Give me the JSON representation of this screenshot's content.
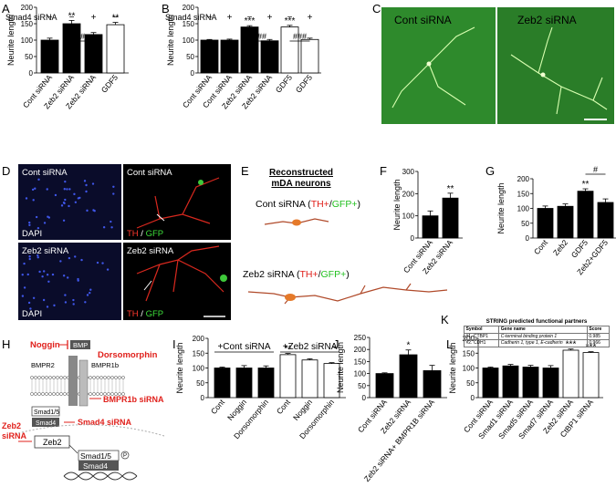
{
  "panel_letters": [
    "A",
    "B",
    "C",
    "D",
    "E",
    "F",
    "G",
    "H",
    "I",
    "J",
    "K",
    "L"
  ],
  "colors": {
    "black_bar": "#000000",
    "white_bar": "#ffffff",
    "red_text": "#e0201b",
    "green_text": "#22c020",
    "dapi_bg": "#0a0c2a",
    "fluo_bg": "#2a7a2a"
  },
  "panel_C": {
    "left_label": "Cont siRNA",
    "right_label": "Zeb2 siRNA"
  },
  "panel_D": {
    "top_left": "Cont siRNA",
    "top_right": "Cont siRNA",
    "bottom_left": "Zeb2 siRNA",
    "bottom_right": "Zeb2 siRNA",
    "dapi": "DAPI",
    "th": "TH",
    "slash": " / ",
    "gfp": "GFP"
  },
  "panel_E": {
    "title_line1": "Reconstructed",
    "title_line2": "mDA neurons",
    "cont_prefix": "Cont siRNA (",
    "zeb2_prefix": "Zeb2 siRNA (",
    "th": "TH+",
    "slash": "/",
    "gfp": "GFP+",
    "close": ")"
  },
  "panel_H": {
    "noggin": "Noggin",
    "bmp": "BMP",
    "dorsomorphin": "Dorsomorphin",
    "bmpr2": "BMPR2",
    "bmpr1b": "BMPR1b",
    "bmpr1b_sirna": "BMPR1b siRNA",
    "smad15": "Smad1/5",
    "smad4": "Smad4",
    "smad4_sirna": "Smad4 siRNA",
    "zeb2_sirna_line1": "Zeb2",
    "zeb2_sirna_line2": "siRNA",
    "zeb2": "Zeb2",
    "nuc_smad15": "Smad1/5",
    "nuc_smad4": "Smad4",
    "p": "P"
  },
  "panel_K": {
    "title": "STRING predicted functional partners",
    "headers": [
      "Symbol",
      "Gene name",
      "Score"
    ],
    "rows": [
      [
        "#1. CTBP1",
        "C-terminal binding protein 1",
        "0.985"
      ],
      [
        "#2. CDH1",
        "Cadherin 1, type 1, E-cadherin",
        "0.966"
      ]
    ]
  },
  "chart_data": [
    {
      "panel": "A",
      "type": "bar",
      "ylabel": "Neurite length",
      "ylim": [
        0,
        200
      ],
      "yticks": [
        "0",
        "50",
        "100",
        "150",
        "200"
      ],
      "categories": [
        "Cont siRNA",
        "Zeb2 siRNA",
        "Zeb2 siRNA",
        "GDF5"
      ],
      "values": [
        100,
        150,
        117,
        147
      ],
      "errors": [
        6,
        10,
        6,
        7
      ],
      "fills": [
        "black",
        "black",
        "black",
        "white"
      ],
      "smad4_label": "Smad4 siRNA",
      "smad4_row": [
        "−",
        "−",
        "+",
        "−"
      ],
      "stars": [
        "",
        "**",
        "",
        "**"
      ],
      "brackets": [
        {
          "from": 1,
          "to": 2,
          "label": "#"
        }
      ]
    },
    {
      "panel": "B",
      "type": "bar",
      "ylabel": "Neurite length",
      "ylim": [
        0,
        200
      ],
      "yticks": [
        "0",
        "50",
        "100",
        "150",
        "200"
      ],
      "categories": [
        "Cont siRNA",
        "Cont siRNA",
        "Zeb2 siRNA",
        "Zeb2 siRNA",
        "GDF5",
        "GDF5"
      ],
      "values": [
        100,
        100,
        140,
        98,
        140,
        102
      ],
      "errors": [
        2,
        3,
        4,
        4,
        5,
        4
      ],
      "fills": [
        "black",
        "black",
        "black",
        "black",
        "white",
        "white"
      ],
      "smad4_label": "Smad4 siRNA",
      "smad4_row": [
        "−",
        "+",
        "−",
        "+",
        "−",
        "+"
      ],
      "stars": [
        "",
        "",
        "***",
        "",
        "***",
        ""
      ],
      "brackets": [
        {
          "from": 2,
          "to": 3,
          "label": "###"
        },
        {
          "from": 4,
          "to": 5,
          "label": "###"
        }
      ]
    },
    {
      "panel": "F",
      "type": "bar",
      "ylabel": "Neurite length",
      "ylim": [
        0,
        300
      ],
      "yticks": [
        "0",
        "100",
        "200",
        "300"
      ],
      "categories": [
        "Cont siRNA",
        "Zeb2 siRNA"
      ],
      "values": [
        100,
        180
      ],
      "errors": [
        22,
        22
      ],
      "fills": [
        "black",
        "black"
      ],
      "stars": [
        "",
        "**"
      ],
      "brackets": []
    },
    {
      "panel": "G",
      "type": "bar",
      "ylabel": "Neurite length",
      "ylim": [
        0,
        200
      ],
      "yticks": [
        "0",
        "50",
        "100",
        "150",
        "200"
      ],
      "categories": [
        "Cont",
        "Zeb2",
        "GDF5",
        "Zeb2+GDF5"
      ],
      "values": [
        100,
        107,
        158,
        120
      ],
      "errors": [
        8,
        8,
        8,
        12
      ],
      "fills": [
        "black",
        "black",
        "black",
        "black"
      ],
      "stars": [
        "",
        "",
        "**",
        ""
      ],
      "brackets": [
        {
          "from": 2,
          "to": 3,
          "label": "#"
        }
      ]
    },
    {
      "panel": "I",
      "type": "bar",
      "ylabel": "Neurite length",
      "ylim": [
        0,
        200
      ],
      "yticks": [
        "0",
        "50",
        "100",
        "150",
        "200"
      ],
      "categories": [
        "Cont",
        "Noggin",
        "Dorsomorphin",
        "Cont",
        "Noggin",
        "Dorsomorphin"
      ],
      "values": [
        100,
        100,
        100,
        145,
        127,
        115
      ],
      "errors": [
        3,
        8,
        7,
        4,
        4,
        3
      ],
      "fills": [
        "black",
        "black",
        "black",
        "white",
        "white",
        "white"
      ],
      "stars": [
        "",
        "",
        "",
        "**",
        "",
        ""
      ],
      "brackets": [],
      "group_labels": [
        {
          "from": 0,
          "to": 2,
          "label": "+Cont siRNA"
        },
        {
          "from": 3,
          "to": 5,
          "label": "+Zeb2 siRNA"
        }
      ]
    },
    {
      "panel": "J",
      "type": "bar",
      "ylabel": "Neurite length",
      "ylim": [
        0,
        250
      ],
      "yticks": [
        "0",
        "50",
        "100",
        "150",
        "200",
        "250"
      ],
      "categories": [
        "Cont siRNA",
        "Zeb2 siRNA",
        "Zeb2 siRNA+ BMPR1B siRNA"
      ],
      "values": [
        100,
        178,
        112
      ],
      "errors": [
        3,
        20,
        22
      ],
      "fills": [
        "black",
        "black",
        "black"
      ],
      "stars": [
        "",
        "*",
        ""
      ],
      "brackets": []
    },
    {
      "panel": "L",
      "type": "bar",
      "ylabel": "Neurite length",
      "ylim": [
        0,
        200
      ],
      "yticks": [
        "0",
        "50",
        "100",
        "150",
        "200"
      ],
      "categories": [
        "Cont siRNA",
        "Smad1 siRNA",
        "Smad5 siRNA",
        "Smad7 siRNA",
        "Zeb2 siRNA",
        "CtBP1 siRNA"
      ],
      "values": [
        100,
        107,
        103,
        100,
        160,
        152
      ],
      "errors": [
        3,
        5,
        6,
        8,
        4,
        3
      ],
      "fills": [
        "black",
        "black",
        "black",
        "black",
        "white",
        "white"
      ],
      "stars": [
        "",
        "",
        "",
        "",
        "***",
        "***"
      ],
      "brackets": []
    }
  ]
}
